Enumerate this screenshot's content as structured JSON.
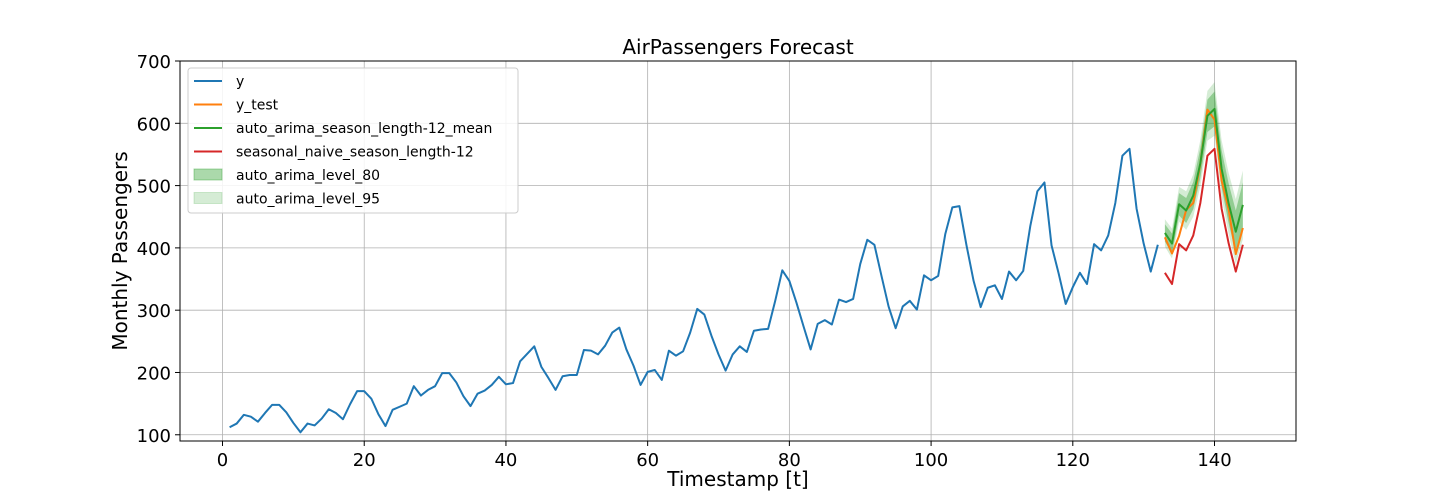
{
  "chart_data": {
    "type": "line",
    "title": "AirPassengers Forecast",
    "xlabel": "Timestamp [t]",
    "ylabel": "Monthly Passengers",
    "xlim": [
      -6,
      151.5
    ],
    "ylim": [
      90,
      700
    ],
    "xticks": [
      0,
      20,
      40,
      60,
      80,
      100,
      120,
      140
    ],
    "yticks": [
      100,
      200,
      300,
      400,
      500,
      600,
      700
    ],
    "grid": true,
    "legend_position": "top-left",
    "colors": {
      "y": "#1f77b4",
      "y_test": "#ff7f0e",
      "auto_arima_mean": "#2ca02c",
      "seasonal_naive": "#d62728",
      "band": "#2ca02c"
    },
    "series": [
      {
        "name": "y",
        "color": "#1f77b4",
        "x": [
          1,
          2,
          3,
          4,
          5,
          6,
          7,
          8,
          9,
          10,
          11,
          12,
          13,
          14,
          15,
          16,
          17,
          18,
          19,
          20,
          21,
          22,
          23,
          24,
          25,
          26,
          27,
          28,
          29,
          30,
          31,
          32,
          33,
          34,
          35,
          36,
          37,
          38,
          39,
          40,
          41,
          42,
          43,
          44,
          45,
          46,
          47,
          48,
          49,
          50,
          51,
          52,
          53,
          54,
          55,
          56,
          57,
          58,
          59,
          60,
          61,
          62,
          63,
          64,
          65,
          66,
          67,
          68,
          69,
          70,
          71,
          72,
          73,
          74,
          75,
          76,
          77,
          78,
          79,
          80,
          81,
          82,
          83,
          84,
          85,
          86,
          87,
          88,
          89,
          90,
          91,
          92,
          93,
          94,
          95,
          96,
          97,
          98,
          99,
          100,
          101,
          102,
          103,
          104,
          105,
          106,
          107,
          108,
          109,
          110,
          111,
          112,
          113,
          114,
          115,
          116,
          117,
          118,
          119,
          120,
          121,
          122,
          123,
          124,
          125,
          126,
          127,
          128,
          129,
          130,
          131,
          132
        ],
        "values": [
          112,
          118,
          132,
          129,
          121,
          135,
          148,
          148,
          136,
          119,
          104,
          118,
          115,
          126,
          141,
          135,
          125,
          149,
          170,
          170,
          158,
          133,
          114,
          140,
          145,
          150,
          178,
          163,
          172,
          178,
          199,
          199,
          184,
          162,
          146,
          166,
          171,
          180,
          193,
          181,
          183,
          218,
          230,
          242,
          209,
          191,
          172,
          194,
          196,
          196,
          236,
          235,
          229,
          243,
          264,
          272,
          237,
          211,
          180,
          201,
          204,
          188,
          235,
          227,
          234,
          264,
          302,
          293,
          259,
          229,
          203,
          229,
          242,
          233,
          267,
          269,
          270,
          315,
          364,
          347,
          312,
          274,
          237,
          278,
          284,
          277,
          317,
          313,
          318,
          374,
          413,
          405,
          355,
          306,
          271,
          306,
          315,
          301,
          356,
          348,
          355,
          422,
          465,
          467,
          404,
          347,
          305,
          336,
          340,
          318,
          362,
          348,
          363,
          435,
          491,
          505,
          404,
          359,
          310,
          337,
          360,
          342,
          406,
          396,
          420,
          472,
          548,
          559,
          463,
          407,
          362,
          405
        ]
      },
      {
        "name": "y_test",
        "color": "#ff7f0e",
        "x": [
          133,
          134,
          135,
          136,
          137,
          138,
          139,
          140,
          141,
          142,
          143,
          144
        ],
        "values": [
          417,
          391,
          419,
          461,
          472,
          535,
          622,
          606,
          508,
          461,
          390,
          432
        ]
      },
      {
        "name": "auto_arima_season_length-12_mean",
        "color": "#2ca02c",
        "x": [
          133,
          134,
          135,
          136,
          137,
          138,
          139,
          140,
          141,
          142,
          143,
          144
        ],
        "values": [
          424,
          407,
          470,
          460,
          484,
          536,
          612,
          623,
          527,
          471,
          426,
          469
        ]
      },
      {
        "name": "seasonal_naive_season_length-12",
        "color": "#d62728",
        "x": [
          133,
          134,
          135,
          136,
          137,
          138,
          139,
          140,
          141,
          142,
          143,
          144
        ],
        "values": [
          360,
          342,
          406,
          396,
          420,
          472,
          548,
          559,
          463,
          407,
          362,
          405
        ]
      }
    ],
    "intervals": [
      {
        "name": "auto_arima_level_80",
        "color": "#2ca02c",
        "opacity": 0.4,
        "x": [
          133,
          134,
          135,
          136,
          137,
          138,
          139,
          140,
          141,
          142,
          143,
          144
        ],
        "lo": [
          410,
          391,
          452,
          440,
          462,
          512,
          586,
          595,
          497,
          439,
          392,
          433
        ],
        "hi": [
          438,
          423,
          488,
          480,
          506,
          560,
          638,
          651,
          557,
          503,
          460,
          505
        ]
      },
      {
        "name": "auto_arima_level_95",
        "color": "#2ca02c",
        "opacity": 0.2,
        "x": [
          133,
          134,
          135,
          136,
          137,
          138,
          139,
          140,
          141,
          142,
          143,
          144
        ],
        "lo": [
          402,
          383,
          442,
          429,
          450,
          499,
          572,
          580,
          481,
          422,
          374,
          414
        ],
        "hi": [
          446,
          431,
          498,
          491,
          518,
          573,
          652,
          666,
          573,
          520,
          478,
          524
        ]
      }
    ],
    "legend": [
      {
        "label": "y",
        "kind": "line",
        "color": "#1f77b4"
      },
      {
        "label": "y_test",
        "kind": "line",
        "color": "#ff7f0e"
      },
      {
        "label": "auto_arima_season_length-12_mean",
        "kind": "line",
        "color": "#2ca02c"
      },
      {
        "label": "seasonal_naive_season_length-12",
        "kind": "line",
        "color": "#d62728"
      },
      {
        "label": "auto_arima_level_80",
        "kind": "patch",
        "color": "#2ca02c",
        "opacity": 0.4
      },
      {
        "label": "auto_arima_level_95",
        "kind": "patch",
        "color": "#2ca02c",
        "opacity": 0.2
      }
    ]
  }
}
